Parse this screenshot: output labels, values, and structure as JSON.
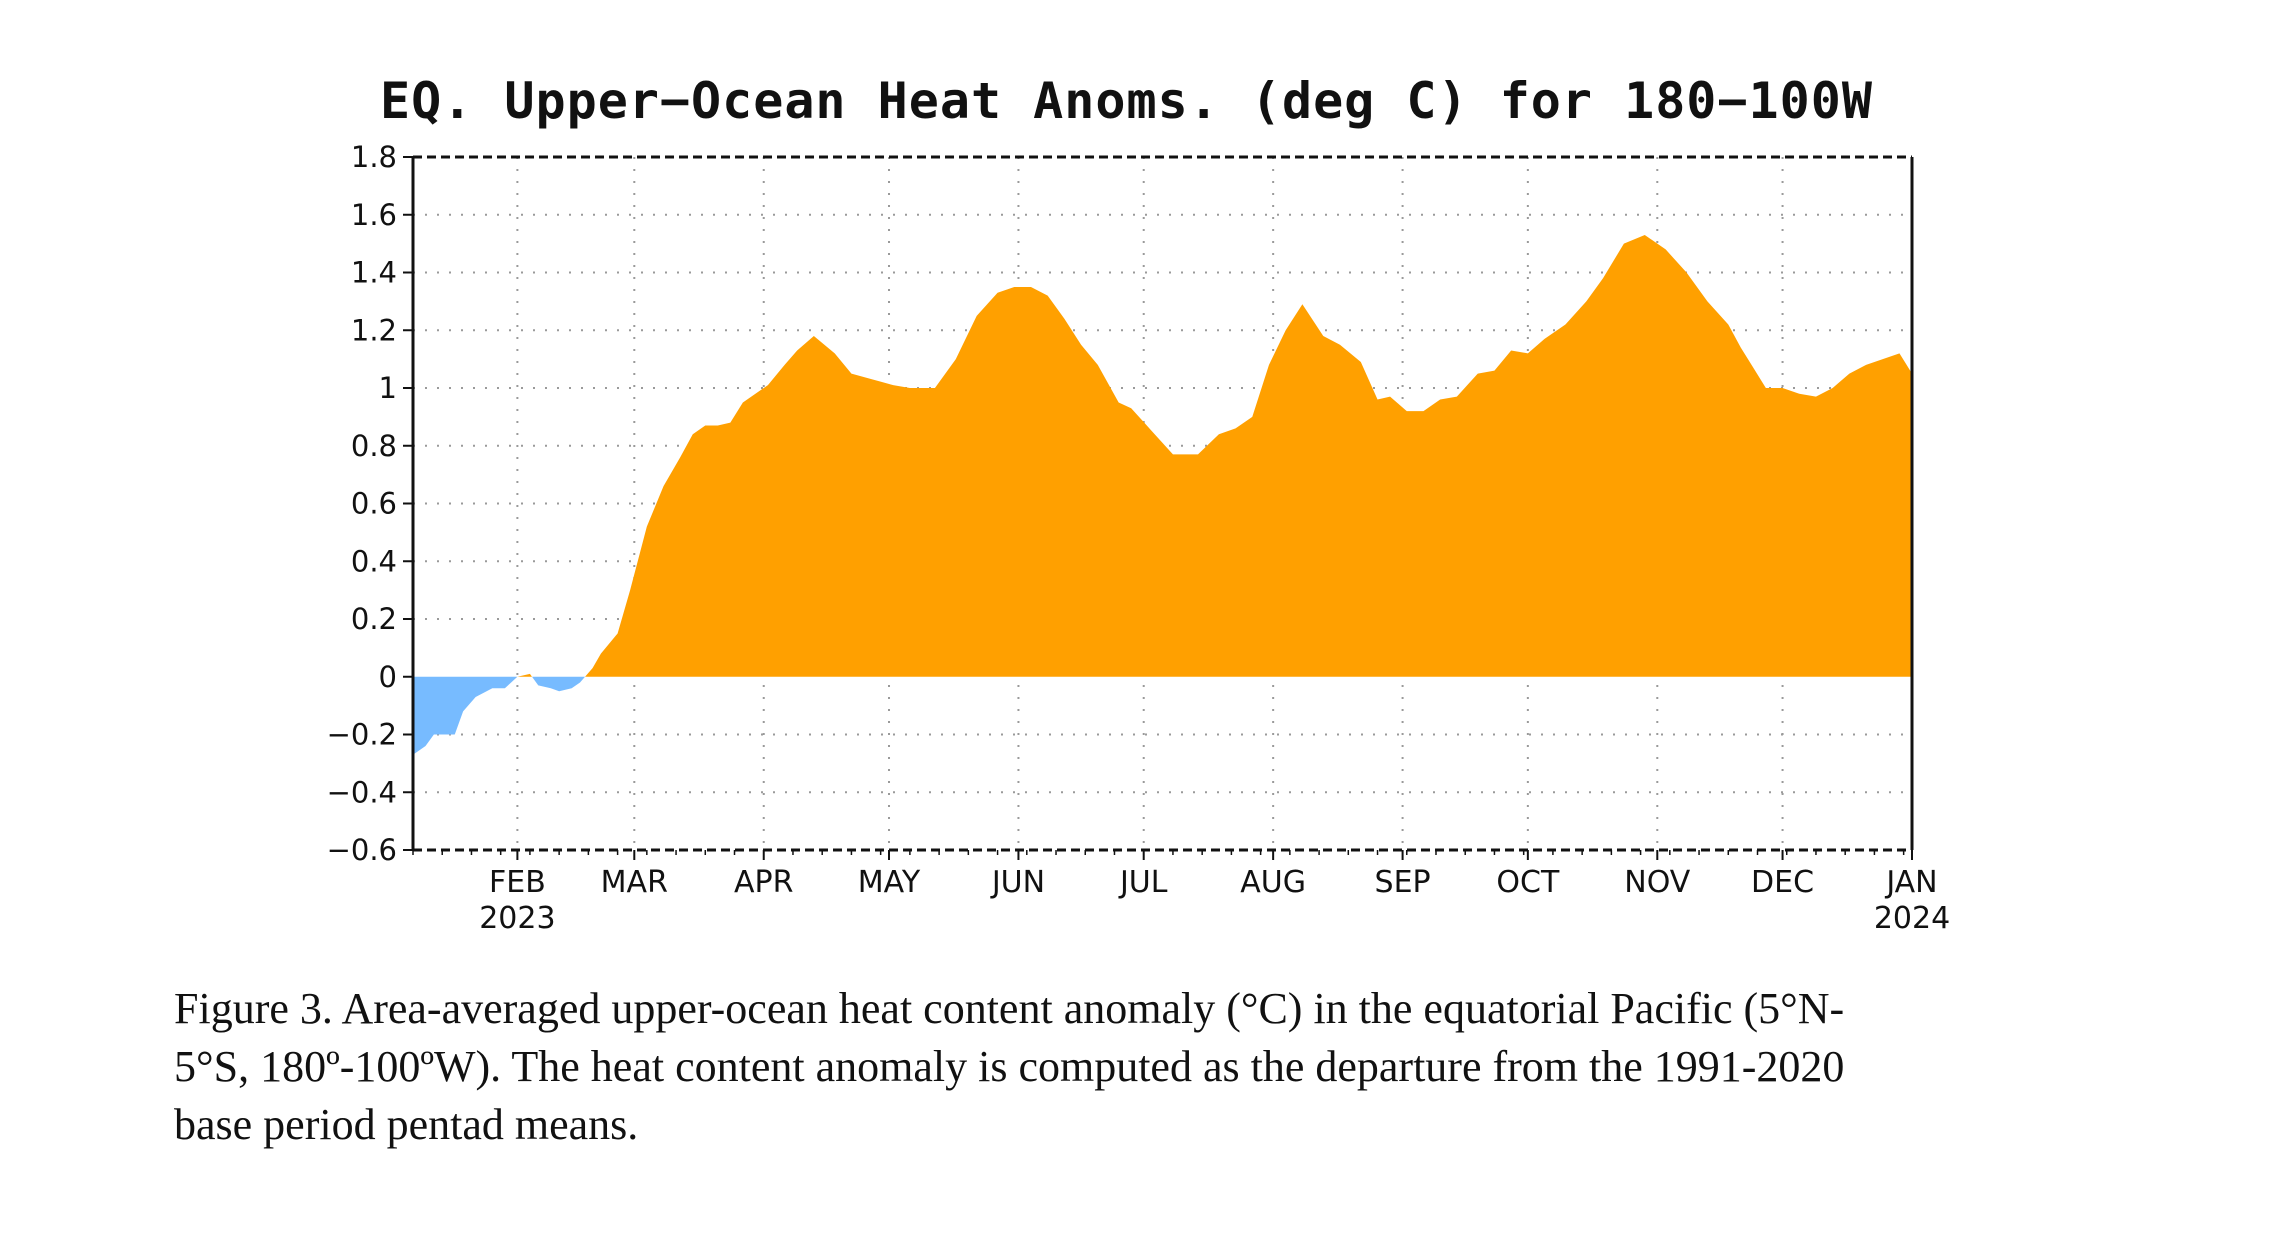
{
  "chart_data": {
    "type": "area",
    "title": "EQ. Upper−Ocean Heat Anoms. (deg C) for 180−100W",
    "xlabel": "",
    "ylabel": "",
    "ylim": [
      -0.6,
      1.8
    ],
    "yticks": [
      "1.8",
      "1.6",
      "1.4",
      "1.2",
      "1",
      "0.8",
      "0.6",
      "0.4",
      "0.2",
      "0",
      "−0.2",
      "−0.4",
      "−0.6"
    ],
    "xlim": [
      "2023-01-07",
      "2024-01-01"
    ],
    "xticks": [
      {
        "date": "2023-02-01",
        "label": "FEB",
        "year": "2023"
      },
      {
        "date": "2023-03-01",
        "label": "MAR",
        "year": ""
      },
      {
        "date": "2023-04-01",
        "label": "APR",
        "year": ""
      },
      {
        "date": "2023-05-01",
        "label": "MAY",
        "year": ""
      },
      {
        "date": "2023-06-01",
        "label": "JUN",
        "year": ""
      },
      {
        "date": "2023-07-01",
        "label": "JUL",
        "year": ""
      },
      {
        "date": "2023-08-01",
        "label": "AUG",
        "year": ""
      },
      {
        "date": "2023-09-01",
        "label": "SEP",
        "year": ""
      },
      {
        "date": "2023-10-01",
        "label": "OCT",
        "year": ""
      },
      {
        "date": "2023-11-01",
        "label": "NOV",
        "year": ""
      },
      {
        "date": "2023-12-01",
        "label": "DEC",
        "year": ""
      },
      {
        "date": "2024-01-01",
        "label": "JAN",
        "year": "2024"
      }
    ],
    "grid": true,
    "positive_color": "#ffa000",
    "negative_color": "#77bbff",
    "series": [
      {
        "x": [
          "2023-01-07",
          "2023-01-10",
          "2023-01-12",
          "2023-01-17",
          "2023-01-19",
          "2023-01-22",
          "2023-01-26",
          "2023-01-29",
          "2023-02-01",
          "2023-02-04",
          "2023-02-06",
          "2023-02-09",
          "2023-02-11",
          "2023-02-14",
          "2023-02-16",
          "2023-02-19",
          "2023-02-21",
          "2023-02-25",
          "2023-02-28",
          "2023-03-04",
          "2023-03-08",
          "2023-03-12",
          "2023-03-15",
          "2023-03-18",
          "2023-03-21",
          "2023-03-24",
          "2023-03-27",
          "2023-03-31",
          "2023-04-02",
          "2023-04-06",
          "2023-04-09",
          "2023-04-13",
          "2023-04-18",
          "2023-04-22",
          "2023-04-27",
          "2023-05-02",
          "2023-05-06",
          "2023-05-12",
          "2023-05-17",
          "2023-05-22",
          "2023-05-27",
          "2023-05-31",
          "2023-06-04",
          "2023-06-08",
          "2023-06-12",
          "2023-06-16",
          "2023-06-20",
          "2023-06-25",
          "2023-06-28",
          "2023-07-03",
          "2023-07-08",
          "2023-07-14",
          "2023-07-19",
          "2023-07-23",
          "2023-07-27",
          "2023-07-31",
          "2023-08-04",
          "2023-08-08",
          "2023-08-13",
          "2023-08-17",
          "2023-08-22",
          "2023-08-26",
          "2023-08-29",
          "2023-09-02",
          "2023-09-06",
          "2023-09-10",
          "2023-09-14",
          "2023-09-19",
          "2023-09-23",
          "2023-09-27",
          "2023-10-01",
          "2023-10-05",
          "2023-10-10",
          "2023-10-15",
          "2023-10-19",
          "2023-10-24",
          "2023-10-29",
          "2023-11-03",
          "2023-11-08",
          "2023-11-13",
          "2023-11-18",
          "2023-11-21",
          "2023-11-24",
          "2023-11-27",
          "2023-12-01",
          "2023-12-05",
          "2023-12-09",
          "2023-12-13",
          "2023-12-17",
          "2023-12-21",
          "2023-12-25",
          "2023-12-29",
          "2024-01-01"
        ],
        "values": [
          -0.27,
          -0.24,
          -0.2,
          -0.2,
          -0.12,
          -0.07,
          -0.04,
          -0.04,
          0.0,
          0.01,
          -0.03,
          -0.04,
          -0.05,
          -0.04,
          -0.02,
          0.03,
          0.08,
          0.15,
          0.3,
          0.52,
          0.66,
          0.76,
          0.84,
          0.87,
          0.87,
          0.88,
          0.95,
          0.99,
          1.01,
          1.08,
          1.13,
          1.18,
          1.12,
          1.05,
          1.03,
          1.01,
          1.0,
          1.0,
          1.1,
          1.25,
          1.33,
          1.35,
          1.35,
          1.32,
          1.24,
          1.15,
          1.08,
          0.95,
          0.93,
          0.85,
          0.77,
          0.77,
          0.84,
          0.86,
          0.9,
          1.08,
          1.2,
          1.29,
          1.18,
          1.15,
          1.09,
          0.96,
          0.97,
          0.92,
          0.92,
          0.96,
          0.97,
          1.05,
          1.06,
          1.13,
          1.12,
          1.17,
          1.22,
          1.3,
          1.38,
          1.5,
          1.53,
          1.48,
          1.4,
          1.3,
          1.22,
          1.14,
          1.07,
          1.0,
          1.0,
          0.98,
          0.97,
          1.0,
          1.05,
          1.08,
          1.1,
          1.12,
          1.05
        ]
      }
    ]
  },
  "caption": {
    "line1": "Figure 3. Area-averaged upper-ocean heat content anomaly (°C) in the equatorial Pacific (5°N-",
    "line2": "5°S, 180º-100ºW). The heat content anomaly is computed as the departure from the 1991-2020",
    "line3": "base period pentad means."
  }
}
